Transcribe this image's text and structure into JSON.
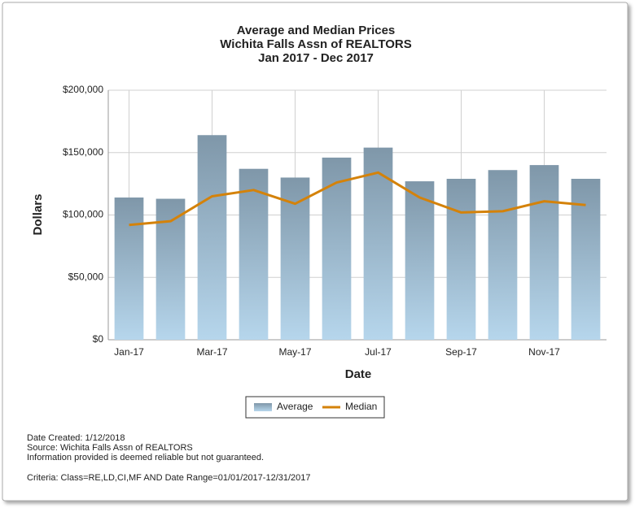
{
  "chart_data": {
    "type": "bar_line",
    "title": [
      "Average and Median Prices",
      "Wichita Falls Assn of REALTORS",
      "Jan 2017 - Dec 2017"
    ],
    "x_label": "Date",
    "y_label": "Dollars",
    "categories": [
      "Jan-17",
      null,
      "Mar-17",
      null,
      "May-17",
      null,
      "Jul-17",
      null,
      "Sep-17",
      null,
      "Nov-17",
      null
    ],
    "series": [
      {
        "name": "Average",
        "type": "bar",
        "color": "#8aa3b5",
        "values": [
          114000,
          113000,
          164000,
          137000,
          130000,
          146000,
          154000,
          127000,
          129000,
          136000,
          140000,
          129000
        ]
      },
      {
        "name": "Median",
        "type": "line",
        "color": "#d4820a",
        "values": [
          92000,
          95000,
          115000,
          120000,
          109000,
          126000,
          134000,
          114000,
          102000,
          103000,
          111000,
          108000
        ]
      }
    ],
    "ylim": [
      0,
      200000
    ],
    "yticks": [
      {
        "value": 0,
        "label": "$0"
      },
      {
        "value": 50000,
        "label": "$50,000"
      },
      {
        "value": 100000,
        "label": "$100,000"
      },
      {
        "value": 150000,
        "label": "$150,000"
      },
      {
        "value": 200000,
        "label": "$200,000"
      }
    ],
    "grid": true,
    "legend": "bottom",
    "footer": [
      "Date Created: 1/12/2018",
      "Source: Wichita Falls Assn of REALTORS",
      "Information provided is deemed reliable but not guaranteed.",
      "Criteria: Class=RE,LD,CI,MF AND Date Range=01/01/2017-12/31/2017"
    ]
  }
}
